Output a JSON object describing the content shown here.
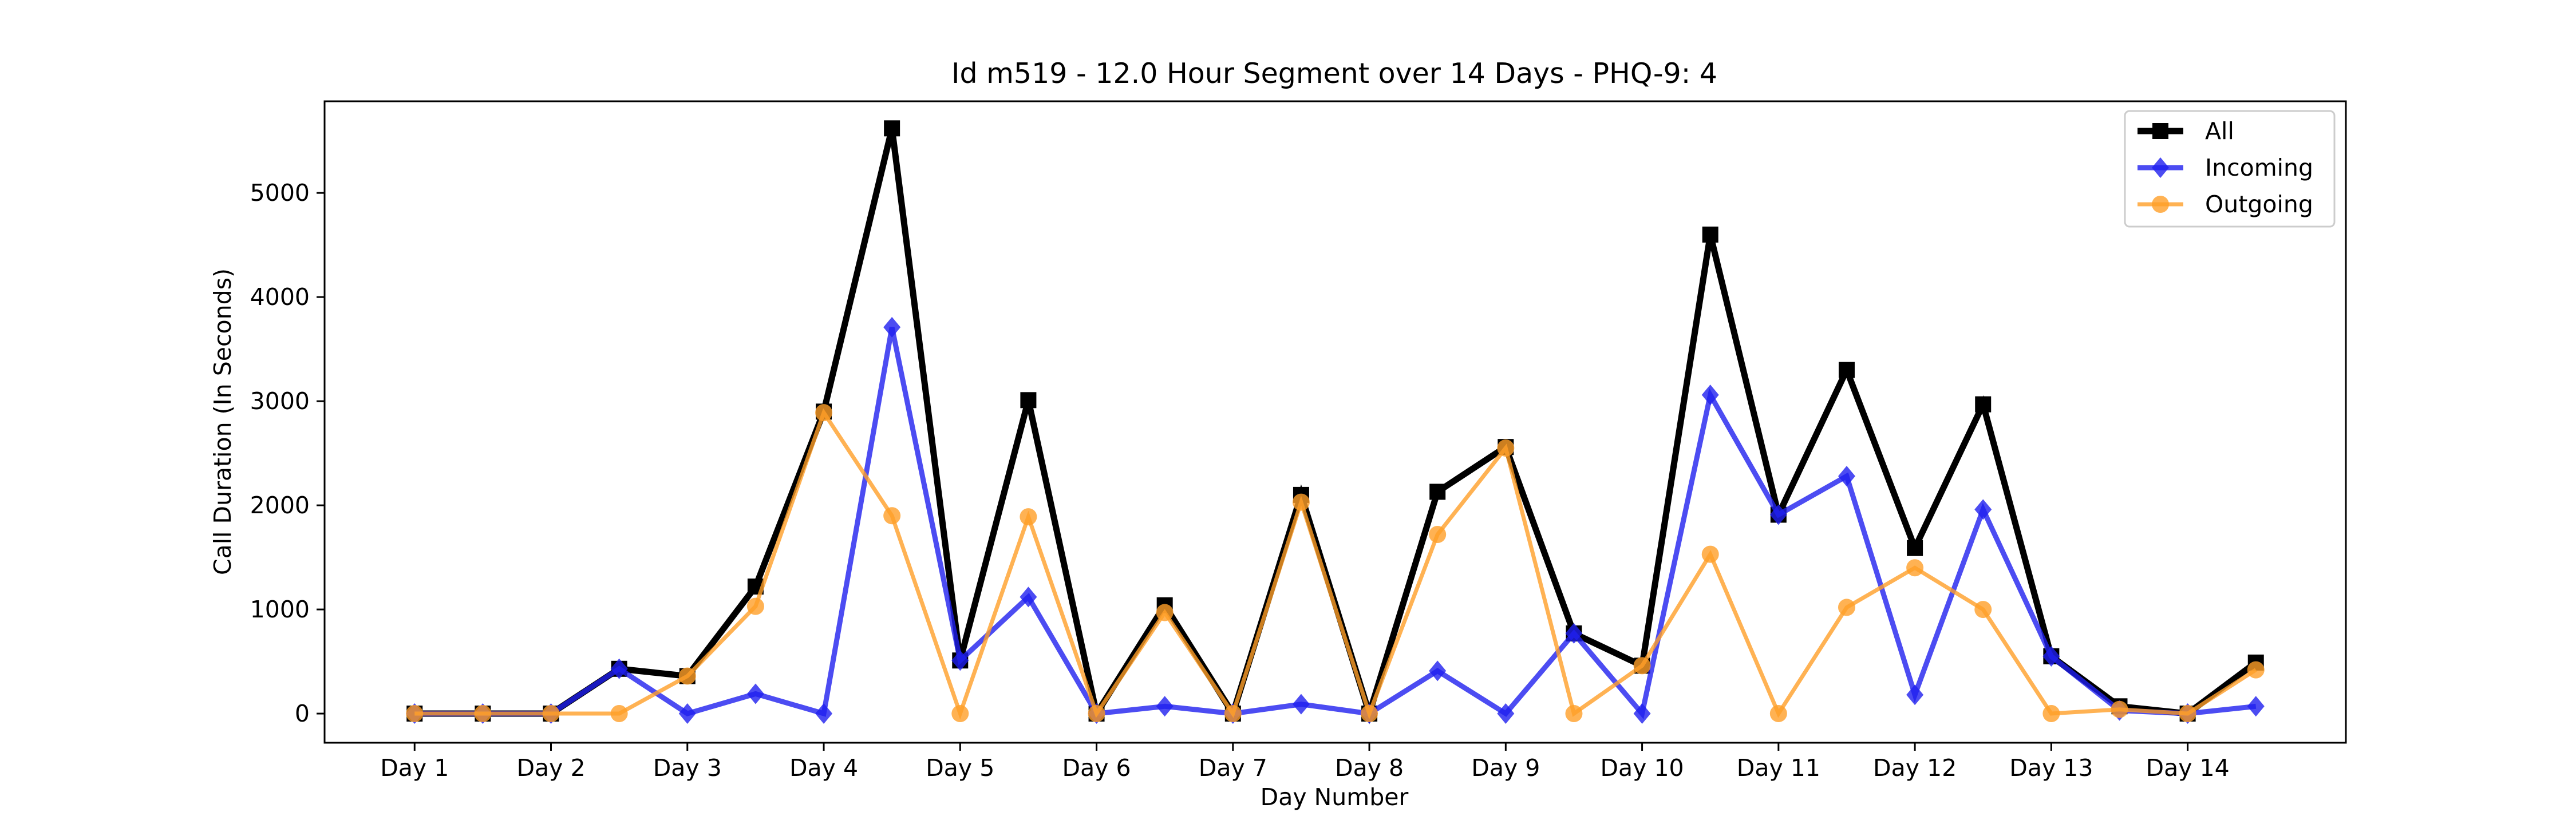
{
  "chart_data": {
    "type": "line",
    "title": "Id m519 - 12.0 Hour Segment over 14 Days - PHQ-9: 4",
    "xlabel": "Day Number",
    "ylabel": "Call Duration (In Seconds)",
    "x_tick_labels": [
      "Day 1",
      "Day 2",
      "Day 3",
      "Day 4",
      "Day 5",
      "Day 6",
      "Day 7",
      "Day 8",
      "Day 9",
      "Day 10",
      "Day 11",
      "Day 12",
      "Day 13",
      "Day 14"
    ],
    "y_ticks": [
      0,
      1000,
      2000,
      3000,
      4000,
      5000
    ],
    "ylim": [
      -280,
      5880
    ],
    "x": [
      1,
      1.5,
      2,
      2.5,
      3,
      3.5,
      4,
      4.5,
      5,
      5.5,
      6,
      6.5,
      7,
      7.5,
      8,
      8.5,
      9,
      9.5,
      10,
      10.5,
      11,
      11.5,
      12,
      12.5,
      13,
      13.5,
      14,
      14.5
    ],
    "xlim": [
      0.34,
      15.16
    ],
    "grid": false,
    "legend_position": "top-right",
    "series": [
      {
        "name": "All",
        "color": "#000000",
        "marker": "square",
        "values": [
          0,
          0,
          0,
          430,
          360,
          1220,
          2900,
          5620,
          510,
          3010,
          0,
          1040,
          0,
          2100,
          0,
          2130,
          2560,
          770,
          460,
          4600,
          1910,
          3300,
          1590,
          2970,
          550,
          70,
          0,
          490
        ]
      },
      {
        "name": "Incoming",
        "color": "#1f1fef",
        "marker": "diamond",
        "values": [
          0,
          0,
          0,
          430,
          0,
          190,
          0,
          3710,
          510,
          1120,
          0,
          70,
          0,
          90,
          0,
          410,
          0,
          770,
          0,
          3060,
          1910,
          2280,
          180,
          1960,
          550,
          30,
          0,
          70
        ]
      },
      {
        "name": "Outgoing",
        "color": "#ff9f28",
        "marker": "circle",
        "values": [
          0,
          0,
          0,
          0,
          360,
          1030,
          2890,
          1900,
          0,
          1890,
          0,
          970,
          0,
          2030,
          0,
          1720,
          2550,
          0,
          460,
          1530,
          0,
          1020,
          1400,
          1000,
          0,
          40,
          0,
          420
        ]
      }
    ]
  }
}
